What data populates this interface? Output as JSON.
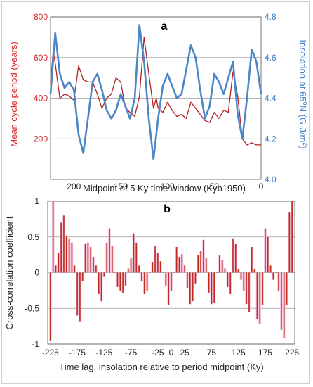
{
  "chart_data": [
    {
      "panel": "a",
      "type": "line",
      "title": "a",
      "xlabel": "Midpoint of 5 Ky time window (Kyb1950)",
      "ylabel_left": "Mean cycle period (years)",
      "ylabel_right_parts": [
        "Insolation at 65",
        "o",
        "N (G-J/m",
        "2",
        ")"
      ],
      "x_ticks": [
        200,
        150,
        100,
        50,
        0
      ],
      "x_range": [
        225,
        0
      ],
      "y_left_ticks": [
        200,
        400,
        600,
        800
      ],
      "y_left_range": [
        0,
        800
      ],
      "y_right_ticks": [
        "4.0",
        "4.2",
        "4.4",
        "4.6",
        "4.8"
      ],
      "y_right_range": [
        4.0,
        4.8
      ],
      "grid": true,
      "series": [
        {
          "axis": "left",
          "color": "#b22222",
          "x": [
            225,
            222,
            215,
            210,
            205,
            200,
            195,
            190,
            185,
            180,
            175,
            170,
            165,
            160,
            155,
            150,
            145,
            140,
            135,
            130,
            125,
            120,
            115,
            112,
            110,
            105,
            100,
            95,
            90,
            85,
            80,
            75,
            70,
            65,
            60,
            55,
            50,
            45,
            40,
            35,
            30,
            25,
            20,
            15,
            10,
            5,
            0
          ],
          "y": [
            470,
            640,
            400,
            420,
            410,
            390,
            560,
            490,
            480,
            480,
            420,
            350,
            400,
            420,
            500,
            480,
            350,
            330,
            310,
            410,
            700,
            520,
            350,
            400,
            350,
            330,
            380,
            340,
            310,
            320,
            300,
            380,
            350,
            320,
            290,
            280,
            330,
            300,
            340,
            330,
            530,
            410,
            200,
            170,
            180,
            170,
            170
          ]
        },
        {
          "axis": "right",
          "color": "#4a86c8",
          "x": [
            225,
            220,
            215,
            210,
            205,
            200,
            195,
            190,
            185,
            180,
            175,
            170,
            165,
            160,
            155,
            150,
            145,
            140,
            135,
            130,
            125,
            120,
            115,
            110,
            105,
            100,
            95,
            90,
            85,
            80,
            75,
            70,
            65,
            60,
            55,
            50,
            45,
            40,
            35,
            30,
            25,
            20,
            15,
            10,
            5,
            0
          ],
          "y": [
            4.42,
            4.72,
            4.52,
            4.45,
            4.48,
            4.44,
            4.22,
            4.13,
            4.3,
            4.48,
            4.52,
            4.44,
            4.34,
            4.3,
            4.34,
            4.42,
            4.36,
            4.3,
            4.4,
            4.76,
            4.58,
            4.3,
            4.1,
            4.3,
            4.46,
            4.52,
            4.46,
            4.4,
            4.42,
            4.54,
            4.66,
            4.6,
            4.44,
            4.3,
            4.36,
            4.52,
            4.48,
            4.42,
            4.5,
            4.58,
            4.32,
            4.2,
            4.4,
            4.64,
            4.58,
            4.42
          ]
        }
      ]
    },
    {
      "panel": "b",
      "type": "bar",
      "title": "b",
      "xlabel": "Time lag, insolation relative to period midpoint (Ky)",
      "ylabel": "Cross-correlation coefficient",
      "x_ticks": [
        -225,
        -175,
        -125,
        -75,
        -25,
        0,
        25,
        75,
        125,
        175,
        225
      ],
      "x_range": [
        -230,
        230
      ],
      "y_ticks": [
        "-1",
        "-0.5",
        "0",
        "0.5",
        "1"
      ],
      "ylim": [
        -1,
        1
      ],
      "grid": true,
      "bar_color": "#c0281e",
      "shade_color": "#f3c6dd",
      "x": [
        -225,
        -220,
        -215,
        -210,
        -205,
        -200,
        -195,
        -190,
        -185,
        -180,
        -175,
        -170,
        -165,
        -160,
        -155,
        -150,
        -145,
        -140,
        -135,
        -130,
        -125,
        -120,
        -115,
        -110,
        -105,
        -100,
        -95,
        -90,
        -85,
        -80,
        -75,
        -70,
        -65,
        -60,
        -55,
        -50,
        -45,
        -40,
        -35,
        -30,
        -25,
        -20,
        -15,
        -10,
        -5,
        0,
        5,
        10,
        15,
        20,
        25,
        30,
        35,
        40,
        45,
        50,
        55,
        60,
        65,
        70,
        75,
        80,
        85,
        90,
        95,
        100,
        105,
        110,
        115,
        120,
        125,
        130,
        135,
        140,
        145,
        150,
        155,
        160,
        165,
        170,
        175,
        180,
        185,
        190,
        195,
        200,
        205,
        210,
        215,
        220,
        225
      ],
      "values": [
        -0.95,
        1.0,
        0.1,
        0.28,
        0.7,
        0.8,
        0.52,
        0.48,
        0.42,
        0.1,
        -0.6,
        -0.68,
        -0.12,
        0.4,
        0.42,
        0.36,
        0.22,
        0.1,
        -0.3,
        -0.4,
        -0.05,
        0.42,
        0.62,
        0.38,
        0.0,
        -0.2,
        -0.25,
        -0.28,
        -0.18,
        0.06,
        0.2,
        0.55,
        0.42,
        0.1,
        -0.12,
        -0.3,
        -0.25,
        0.0,
        0.15,
        0.38,
        0.28,
        0.16,
        0.0,
        -0.18,
        -0.45,
        -0.25,
        0.0,
        0.36,
        0.22,
        0.26,
        0.1,
        -0.22,
        -0.44,
        -0.4,
        -0.15,
        0.25,
        0.3,
        0.46,
        0.2,
        -0.28,
        -0.44,
        -0.42,
        0.0,
        0.24,
        0.18,
        0.06,
        -0.2,
        -0.3,
        0.48,
        0.4,
        0.05,
        -0.1,
        -0.25,
        -0.44,
        -0.55,
        0.36,
        0.05,
        -0.65,
        -0.72,
        -0.45,
        0.62,
        0.5,
        0.1,
        -0.1,
        0.0,
        -0.25,
        -0.8,
        -0.92,
        -0.45,
        0.84,
        1.0
      ]
    }
  ]
}
